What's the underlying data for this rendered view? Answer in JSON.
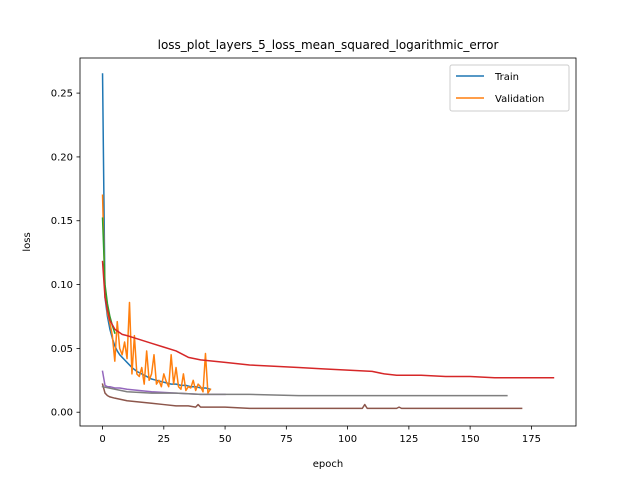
{
  "chart_data": {
    "type": "line",
    "title": "loss_plot_layers_5_loss_mean_squared_logarithmic_error",
    "xlabel": "epoch",
    "ylabel": "loss",
    "xlim": [
      -9.2,
      193.2
    ],
    "ylim": [
      -0.0108,
      0.2775
    ],
    "xticks": [
      0,
      25,
      50,
      75,
      100,
      125,
      150,
      175
    ],
    "yticks": [
      0.0,
      0.05,
      0.1,
      0.15,
      0.2,
      0.25
    ],
    "ytick_labels": [
      "0.00",
      "0.05",
      "0.10",
      "0.15",
      "0.20",
      "0.25"
    ],
    "grid": false,
    "legend": {
      "position": "top-right",
      "entries": [
        {
          "label": "Train",
          "color": "#1f77b4"
        },
        {
          "label": "Validation",
          "color": "#ff7f0e"
        }
      ]
    },
    "series": [
      {
        "name": "Train",
        "color": "#1f77b4",
        "x": [
          0,
          1,
          2,
          3,
          4,
          5,
          6,
          7,
          8,
          9,
          10,
          12,
          14,
          16,
          18,
          20,
          22,
          24,
          26,
          28,
          30,
          32,
          34,
          36,
          38,
          40,
          42,
          44
        ],
        "y": [
          0.265,
          0.09,
          0.075,
          0.065,
          0.058,
          0.052,
          0.048,
          0.045,
          0.043,
          0.041,
          0.039,
          0.035,
          0.032,
          0.03,
          0.028,
          0.026,
          0.025,
          0.024,
          0.023,
          0.022,
          0.022,
          0.021,
          0.021,
          0.02,
          0.02,
          0.019,
          0.019,
          0.018
        ]
      },
      {
        "name": "Validation",
        "color": "#ff7f0e",
        "x": [
          0,
          1,
          2,
          3,
          4,
          5,
          6,
          7,
          8,
          9,
          10,
          11,
          12,
          13,
          14,
          15,
          16,
          17,
          18,
          19,
          20,
          21,
          22,
          23,
          24,
          25,
          26,
          27,
          28,
          29,
          30,
          31,
          32,
          33,
          34,
          35,
          36,
          37,
          38,
          39,
          40,
          41,
          42,
          43,
          44
        ],
        "y": [
          0.17,
          0.095,
          0.078,
          0.07,
          0.06,
          0.04,
          0.071,
          0.05,
          0.045,
          0.055,
          0.042,
          0.086,
          0.03,
          0.06,
          0.03,
          0.028,
          0.035,
          0.022,
          0.048,
          0.025,
          0.03,
          0.045,
          0.022,
          0.025,
          0.02,
          0.03,
          0.024,
          0.02,
          0.045,
          0.022,
          0.035,
          0.02,
          0.018,
          0.03,
          0.017,
          0.02,
          0.019,
          0.025,
          0.017,
          0.022,
          0.02,
          0.016,
          0.046,
          0.015,
          0.018
        ]
      },
      {
        "color": "#2ca02c",
        "x": [
          0,
          1,
          2,
          3,
          4,
          5
        ],
        "y": [
          0.152,
          0.1,
          0.085,
          0.075,
          0.068,
          0.062
        ]
      },
      {
        "color": "#d62728",
        "x": [
          0,
          1,
          2,
          3,
          5,
          8,
          10,
          15,
          20,
          25,
          30,
          35,
          40,
          45,
          50,
          60,
          70,
          80,
          90,
          100,
          110,
          115,
          120,
          125,
          130,
          140,
          150,
          160,
          170,
          175,
          180,
          184
        ],
        "y": [
          0.118,
          0.09,
          0.08,
          0.072,
          0.065,
          0.061,
          0.06,
          0.057,
          0.054,
          0.051,
          0.048,
          0.043,
          0.041,
          0.04,
          0.039,
          0.037,
          0.036,
          0.035,
          0.034,
          0.033,
          0.032,
          0.03,
          0.029,
          0.029,
          0.029,
          0.028,
          0.028,
          0.027,
          0.027,
          0.027,
          0.027,
          0.027
        ]
      },
      {
        "color": "#9467bd",
        "x": [
          0,
          1,
          2,
          3,
          5,
          7,
          10,
          15,
          20,
          30,
          40,
          50
        ],
        "y": [
          0.032,
          0.021,
          0.02,
          0.02,
          0.019,
          0.019,
          0.018,
          0.017,
          0.016,
          0.015,
          0.014,
          0.014
        ]
      },
      {
        "color": "#8c564b",
        "x": [
          0,
          1,
          2,
          3,
          5,
          10,
          15,
          20,
          25,
          30,
          35,
          38,
          39,
          40,
          41,
          45,
          50,
          60,
          70,
          80,
          90,
          100,
          105,
          106,
          107,
          108,
          110,
          120,
          121,
          122,
          130,
          140,
          150,
          160,
          170,
          171
        ],
        "y": [
          0.022,
          0.015,
          0.013,
          0.012,
          0.011,
          0.009,
          0.008,
          0.007,
          0.006,
          0.005,
          0.005,
          0.004,
          0.006,
          0.004,
          0.004,
          0.004,
          0.004,
          0.003,
          0.003,
          0.003,
          0.003,
          0.003,
          0.003,
          0.003,
          0.006,
          0.003,
          0.003,
          0.003,
          0.004,
          0.003,
          0.003,
          0.003,
          0.003,
          0.003,
          0.003,
          0.003
        ]
      },
      {
        "color": "#7f7f7f",
        "x": [
          0,
          10,
          20,
          30,
          40,
          50,
          60,
          80,
          100,
          120,
          140,
          160,
          165
        ],
        "y": [
          0.02,
          0.016,
          0.015,
          0.015,
          0.014,
          0.014,
          0.014,
          0.013,
          0.013,
          0.013,
          0.013,
          0.013,
          0.013
        ]
      }
    ]
  }
}
